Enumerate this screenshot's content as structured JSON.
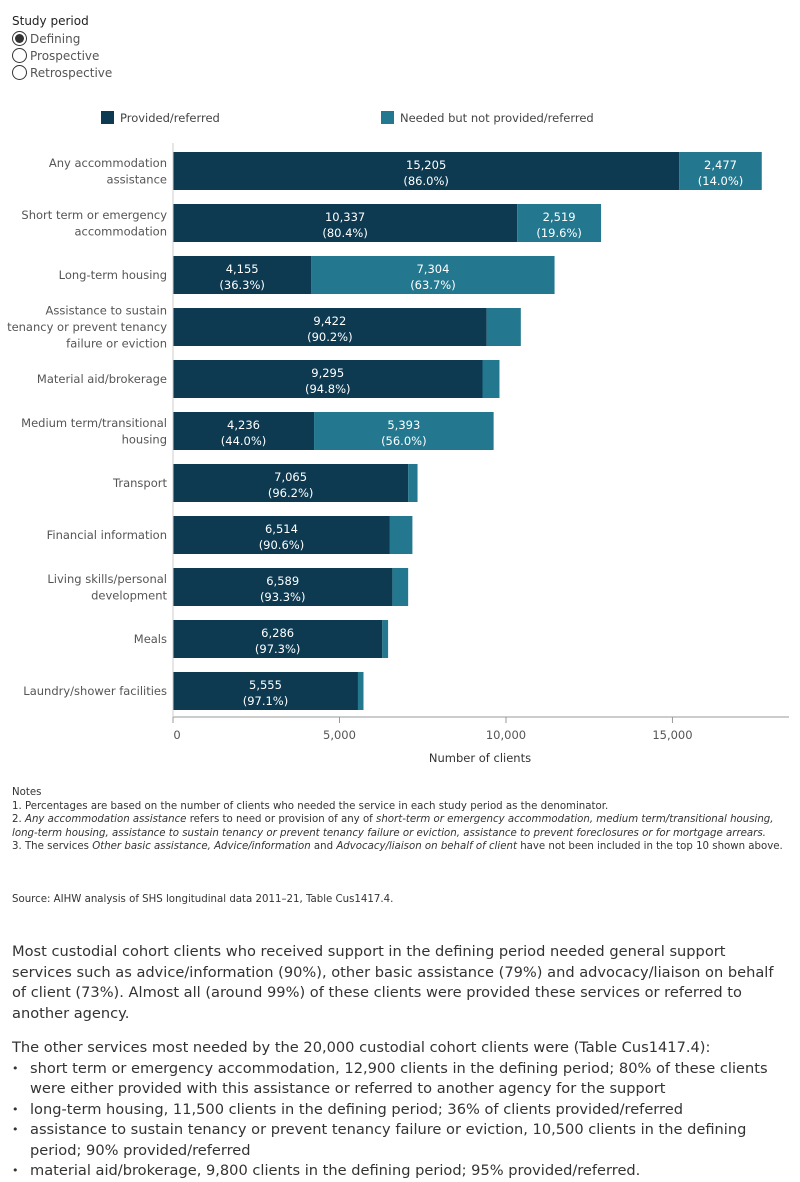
{
  "study_period": {
    "title": "Study period",
    "options": [
      {
        "label": "Defining",
        "selected": true
      },
      {
        "label": "Prospective",
        "selected": false
      },
      {
        "label": "Retrospective",
        "selected": false
      }
    ]
  },
  "colors": {
    "provided": "#0d3a50",
    "needed": "#23788f",
    "axis": "#999999"
  },
  "chart_data": {
    "type": "bar",
    "orientation": "horizontal",
    "stacked": true,
    "xlabel": "Number of clients",
    "xlim": [
      0,
      18500
    ],
    "xticks": [
      0,
      5000,
      10000,
      15000
    ],
    "xtick_labels": [
      "0",
      "5,000",
      "10,000",
      "15,000"
    ],
    "legend_position": "top",
    "categories": [
      [
        "Any accommodation",
        "assistance"
      ],
      [
        "Short term or emergency",
        "accommodation"
      ],
      [
        "Long-term housing"
      ],
      [
        "Assistance to sustain",
        "tenancy or prevent tenancy",
        "failure or eviction"
      ],
      [
        "Material aid/brokerage"
      ],
      [
        "Medium term/transitional",
        "housing"
      ],
      [
        "Transport"
      ],
      [
        "Financial information"
      ],
      [
        "Living skills/personal",
        "development"
      ],
      [
        "Meals"
      ],
      [
        "Laundry/shower facilities"
      ]
    ],
    "series": [
      {
        "name": "Provided/referred",
        "values": [
          15205,
          10337,
          4155,
          9422,
          9295,
          4236,
          7065,
          6514,
          6589,
          6286,
          5555
        ],
        "labels": [
          "15,205",
          "10,337",
          "4,155",
          "9,422",
          "9,295",
          "4,236",
          "7,065",
          "6,514",
          "6,589",
          "6,286",
          "5,555"
        ],
        "pct_labels": [
          "(86.0%)",
          "(80.4%)",
          "(36.3%)",
          "(90.2%)",
          "(94.8%)",
          "(44.0%)",
          "(96.2%)",
          "(90.6%)",
          "(93.3%)",
          "(97.3%)",
          "(97.1%)"
        ]
      },
      {
        "name": "Needed but not provided/referred",
        "values": [
          2477,
          2519,
          7304,
          1024,
          510,
          5393,
          279,
          676,
          473,
          174,
          166
        ],
        "labels": [
          "2,477",
          "2,519",
          "7,304",
          null,
          null,
          "5,393",
          null,
          null,
          null,
          null,
          null
        ],
        "pct_labels": [
          "(14.0%)",
          "(19.6%)",
          "(63.7%)",
          null,
          null,
          "(56.0%)",
          null,
          null,
          null,
          null,
          null
        ]
      }
    ]
  },
  "notes": {
    "heading": "Notes",
    "note1": "1.  Percentages are based on the number of clients who needed the service in each study period as the denominator.",
    "note2_prefix": "2.  ",
    "note2_em": "Any accommodation assistance",
    "note2_mid": "  refers to need or provision of any of ",
    "note2_em2": "short-term or emergency accommodation, medium term/transitional housing, long-term housing, assistance to sustain tenancy or prevent tenancy failure or eviction, assistance to prevent foreclosures or for mortgage arrears.",
    "note3_prefix": "3.  The services ",
    "note3_em1": "Other basic assistance, Advice/information",
    "note3_and": " and ",
    "note3_em2": "Advocacy/liaison on behalf of client",
    "note3_suffix": "  have not been included in the top 10 shown above."
  },
  "source": "Source: AIHW analysis of SHS longitudinal data 2011–21, Table Cus1417.4.",
  "body": {
    "para1": "Most custodial cohort clients who received support in the defining period needed general support services such as advice/information (90%), other basic assistance (79%) and advocacy/liaison on behalf of client (73%). Almost all (around 99%) of these clients were provided these services or referred to another agency.",
    "para2": "The other services most needed by the 20,000 custodial cohort clients were (Table Cus1417.4):",
    "bullets": [
      "short term or emergency accommodation, 12,900 clients in the defining period; 80% of these clients were either provided with this assistance or referred to another agency for the support",
      "long-term housing, 11,500 clients in the defining period; 36% of clients provided/referred",
      "assistance to sustain tenancy or prevent tenancy failure or eviction, 10,500 clients in the defining period; 90% provided/referred",
      "material aid/brokerage, 9,800 clients in the defining period; 95% provided/referred."
    ]
  }
}
